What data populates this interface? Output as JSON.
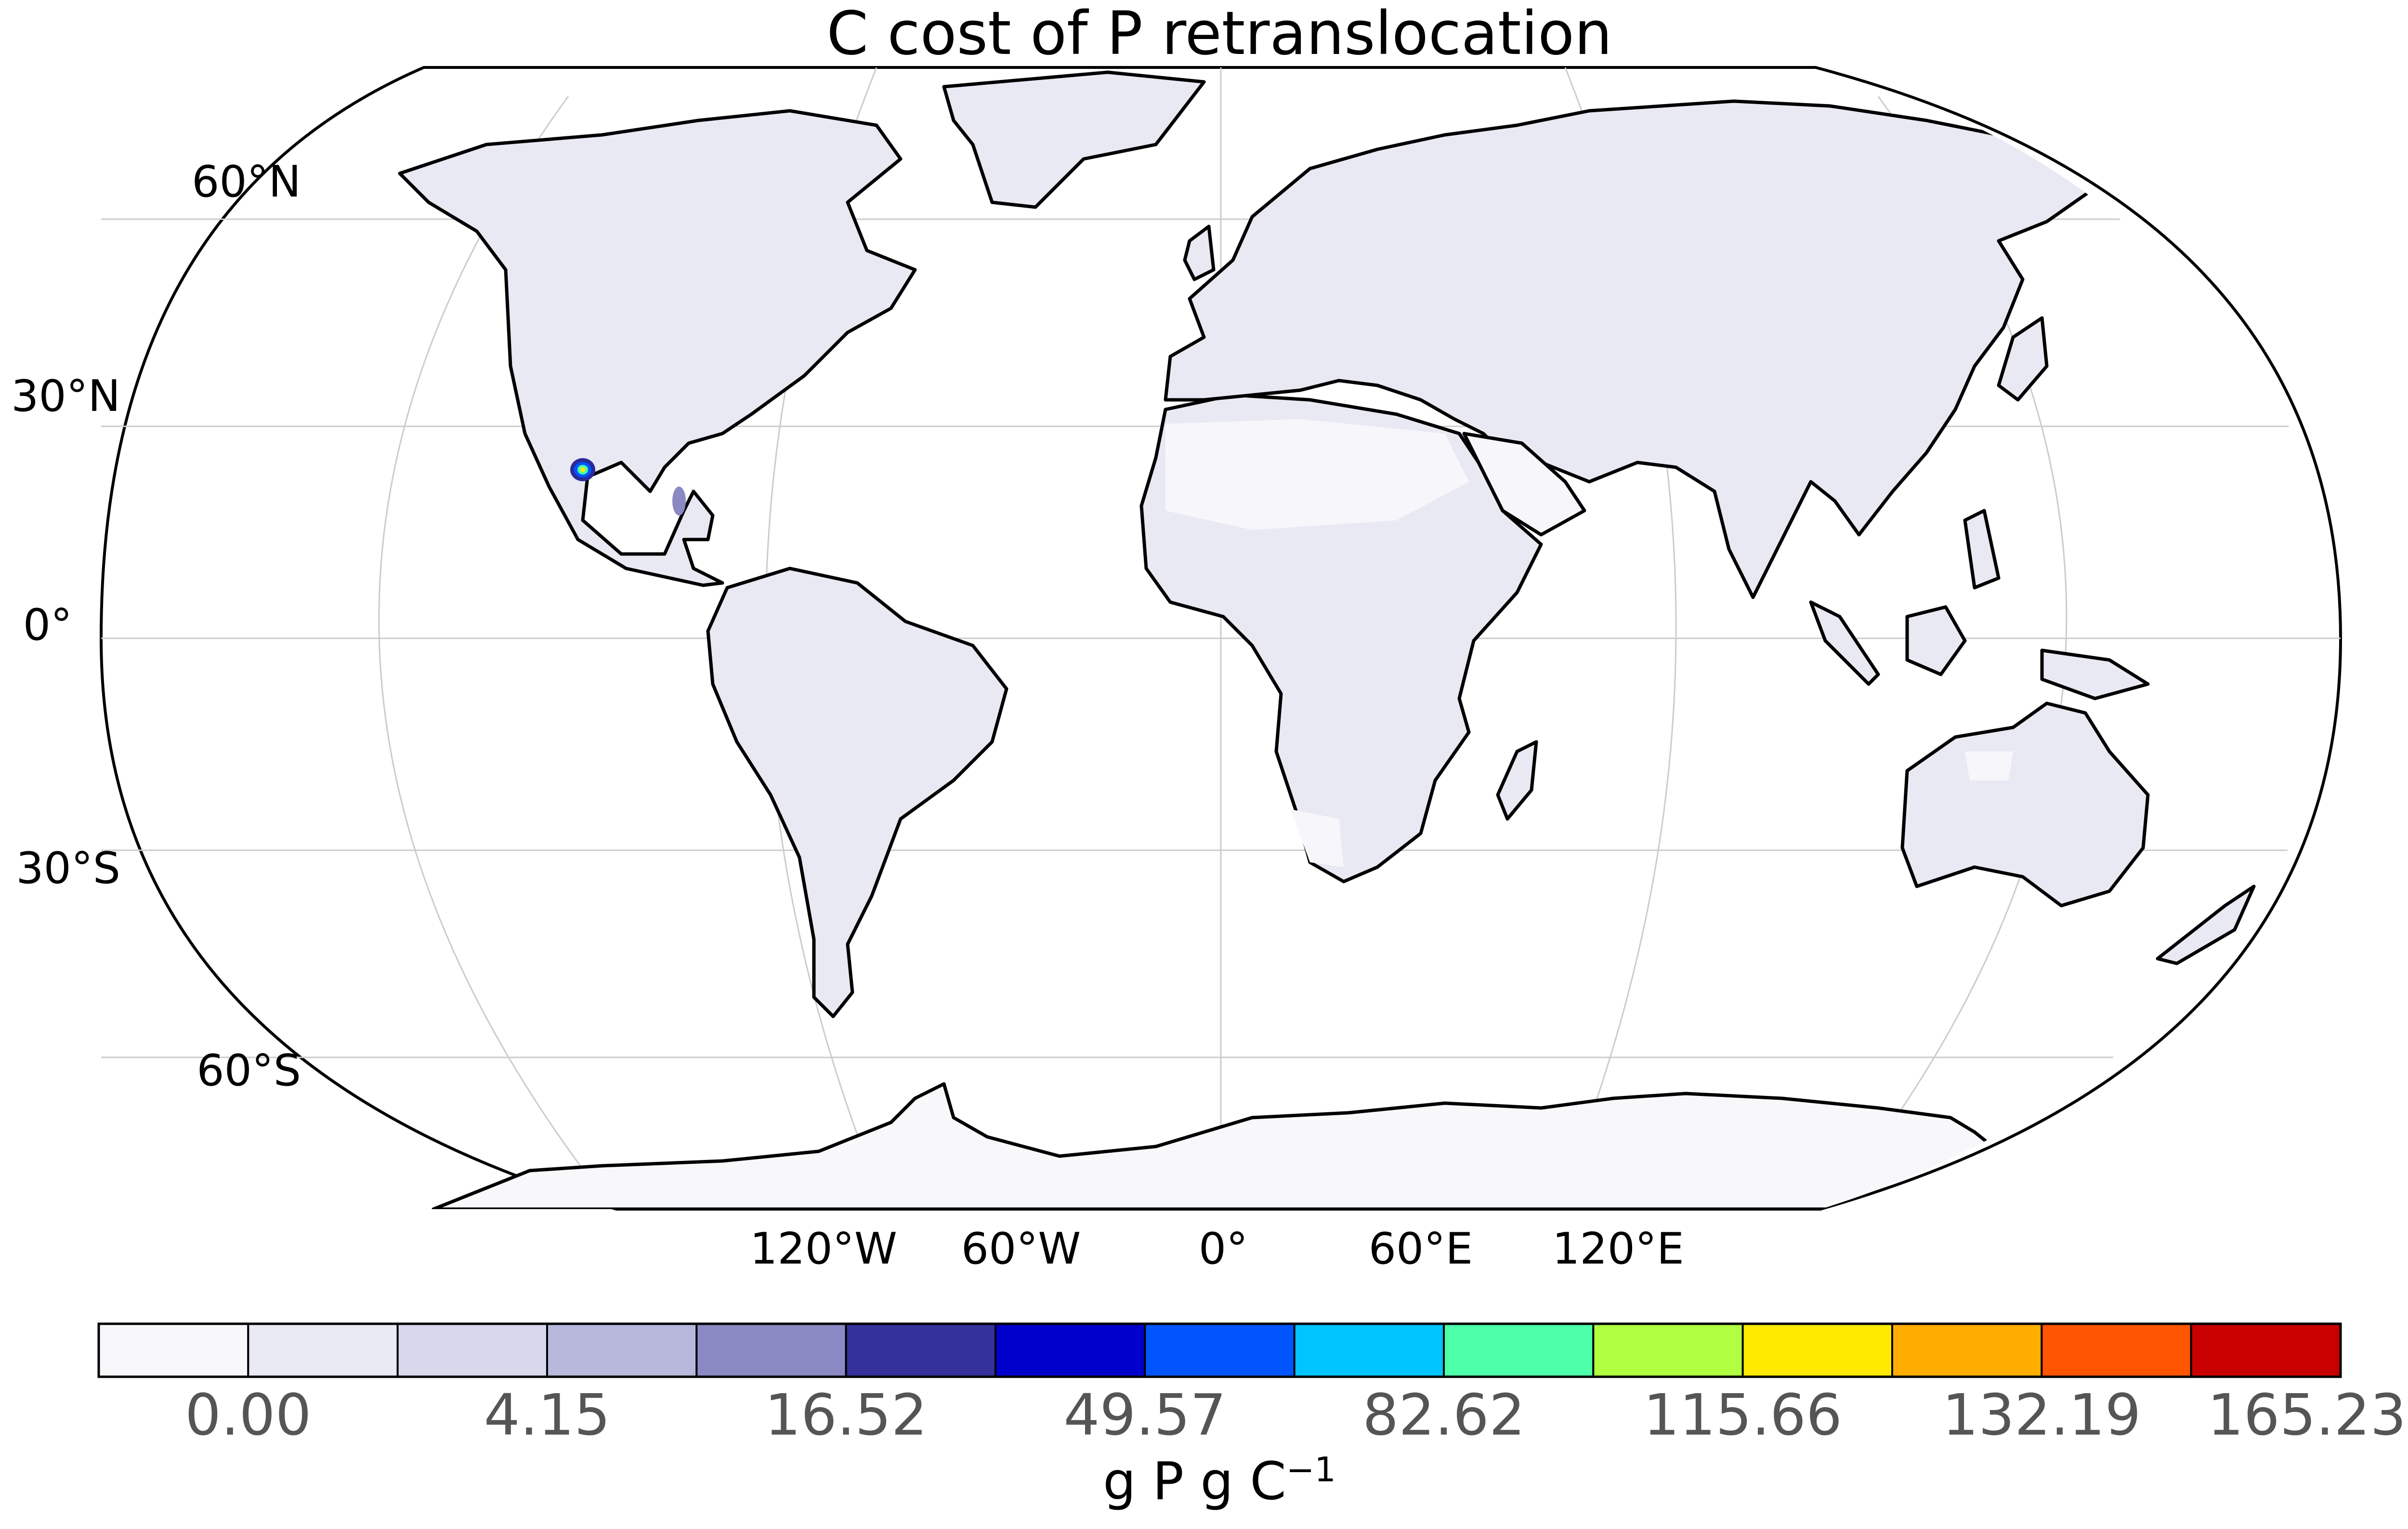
{
  "title": "C cost of P retranslocation",
  "lat_labels": [
    "60°N",
    "30°N",
    "0°",
    "30°S",
    "60°S"
  ],
  "lon_labels": [
    "120°W",
    "60°W",
    "0°",
    "60°E",
    "120°E"
  ],
  "colorbar": {
    "colors": [
      "#f8f8fb",
      "#eaeaf4",
      "#d8d8ec",
      "#b8b8dc",
      "#8a89c4",
      "#34319a",
      "#0000cc",
      "#0055ff",
      "#00c4ff",
      "#4dffa8",
      "#b0ff40",
      "#ffea00",
      "#ffae00",
      "#ff5500",
      "#c80000"
    ],
    "tick_labels": [
      "0.00",
      "4.15",
      "16.52",
      "49.57",
      "82.62",
      "115.66",
      "132.19",
      "165.23"
    ],
    "unit_base": "g P g C",
    "unit_exponent": "−1"
  },
  "map_colors": {
    "land_fill": "#e9e9f4",
    "desert_fill": "#f7f7fb",
    "antarctica_fill": "#f8f8fb",
    "coastline": "#000000",
    "gridline": "#cccccc",
    "hotspot_colors": [
      "#2a2a9a",
      "#0055ff",
      "#4dffa8",
      "#ffea00"
    ]
  }
}
